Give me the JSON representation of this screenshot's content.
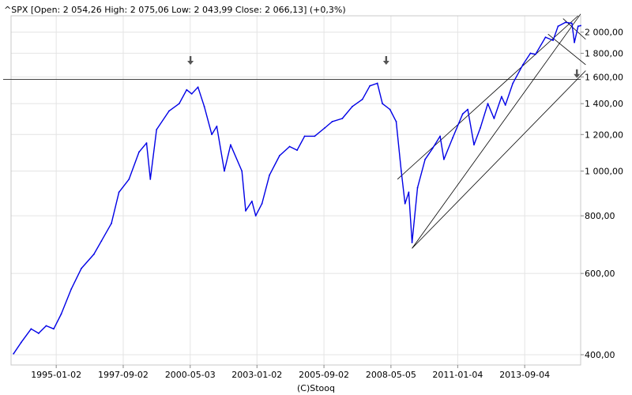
{
  "header": {
    "text": "^SPX [Open: 2 054,26  High: 2 075,06  Low: 2 043,99  Close: 2 066,13]  (+0,3%)"
  },
  "credit": "(C)Stooq",
  "colors": {
    "series": "#0000e6",
    "frame": "#c8c8c8",
    "grid": "#e4e4e4",
    "trendline": "#000000",
    "marker": "#555555"
  },
  "chart_data": {
    "type": "line",
    "title": "^SPX",
    "y_scale": "log",
    "ylim": [
      380,
      2170
    ],
    "xlim": [
      1993.2,
      2015.9
    ],
    "y_ticks": [
      {
        "value": 2000,
        "label": "2 000,00"
      },
      {
        "value": 1800,
        "label": "1 800,00"
      },
      {
        "value": 1600,
        "label": "1 600,00"
      },
      {
        "value": 1400,
        "label": "1 400,00"
      },
      {
        "value": 1200,
        "label": "1 200,00"
      },
      {
        "value": 1000,
        "label": "1 000,00"
      },
      {
        "value": 800,
        "label": "800,00"
      },
      {
        "value": 600,
        "label": "600,00"
      },
      {
        "value": 400,
        "label": "400,00"
      }
    ],
    "x_ticks": [
      {
        "value": 1995.0,
        "label": "1995-01-02"
      },
      {
        "value": 1997.67,
        "label": "1997-09-02"
      },
      {
        "value": 2000.34,
        "label": "2000-05-03"
      },
      {
        "value": 2003.0,
        "label": "2003-01-02"
      },
      {
        "value": 2005.67,
        "label": "2005-09-02"
      },
      {
        "value": 2008.34,
        "label": "2008-05-05"
      },
      {
        "value": 2011.0,
        "label": "2011-01-04"
      },
      {
        "value": 2013.67,
        "label": "2013-09-04"
      }
    ],
    "series": [
      {
        "values": [
          [
            1993.3,
            402
          ],
          [
            1993.6,
            425
          ],
          [
            1994.0,
            455
          ],
          [
            1994.3,
            445
          ],
          [
            1994.6,
            462
          ],
          [
            1994.9,
            455
          ],
          [
            1995.2,
            490
          ],
          [
            1995.6,
            555
          ],
          [
            1996.0,
            615
          ],
          [
            1996.5,
            660
          ],
          [
            1996.8,
            705
          ],
          [
            1997.2,
            770
          ],
          [
            1997.5,
            900
          ],
          [
            1997.9,
            960
          ],
          [
            1998.3,
            1100
          ],
          [
            1998.6,
            1150
          ],
          [
            1998.75,
            960
          ],
          [
            1999.0,
            1230
          ],
          [
            1999.5,
            1350
          ],
          [
            1999.9,
            1400
          ],
          [
            2000.2,
            1500
          ],
          [
            2000.4,
            1470
          ],
          [
            2000.65,
            1520
          ],
          [
            2000.9,
            1380
          ],
          [
            2001.2,
            1200
          ],
          [
            2001.4,
            1250
          ],
          [
            2001.7,
            1000
          ],
          [
            2001.95,
            1140
          ],
          [
            2002.4,
            1000
          ],
          [
            2002.55,
            820
          ],
          [
            2002.8,
            860
          ],
          [
            2002.95,
            800
          ],
          [
            2003.2,
            850
          ],
          [
            2003.5,
            980
          ],
          [
            2003.9,
            1080
          ],
          [
            2004.3,
            1130
          ],
          [
            2004.6,
            1110
          ],
          [
            2004.9,
            1190
          ],
          [
            2005.3,
            1190
          ],
          [
            2005.7,
            1240
          ],
          [
            2006.0,
            1280
          ],
          [
            2006.4,
            1300
          ],
          [
            2006.8,
            1380
          ],
          [
            2007.2,
            1430
          ],
          [
            2007.5,
            1530
          ],
          [
            2007.8,
            1550
          ],
          [
            2008.0,
            1400
          ],
          [
            2008.3,
            1360
          ],
          [
            2008.55,
            1280
          ],
          [
            2008.75,
            1000
          ],
          [
            2008.9,
            850
          ],
          [
            2009.05,
            900
          ],
          [
            2009.18,
            700
          ],
          [
            2009.4,
            920
          ],
          [
            2009.7,
            1060
          ],
          [
            2010.0,
            1120
          ],
          [
            2010.3,
            1190
          ],
          [
            2010.45,
            1060
          ],
          [
            2010.8,
            1180
          ],
          [
            2011.2,
            1330
          ],
          [
            2011.4,
            1360
          ],
          [
            2011.65,
            1140
          ],
          [
            2011.9,
            1240
          ],
          [
            2012.2,
            1400
          ],
          [
            2012.45,
            1300
          ],
          [
            2012.75,
            1450
          ],
          [
            2012.9,
            1390
          ],
          [
            2013.2,
            1550
          ],
          [
            2013.6,
            1700
          ],
          [
            2013.9,
            1800
          ],
          [
            2014.1,
            1790
          ],
          [
            2014.5,
            1950
          ],
          [
            2014.8,
            1920
          ],
          [
            2015.0,
            2060
          ],
          [
            2015.3,
            2100
          ],
          [
            2015.55,
            2090
          ],
          [
            2015.65,
            1900
          ],
          [
            2015.8,
            2060
          ],
          [
            2015.9,
            2066
          ]
        ]
      }
    ],
    "annotations": {
      "horizontal_line": 1580,
      "down_arrows": [
        {
          "x": 2000.35,
          "y": 1720
        },
        {
          "x": 2008.15,
          "y": 1720
        },
        {
          "x": 2015.75,
          "y": 1610
        }
      ],
      "trend_lines": [
        {
          "from": [
            2009.18,
            680
          ],
          "to": [
            2016.1,
            1650
          ]
        },
        {
          "from": [
            2009.18,
            680
          ],
          "to": [
            2015.9,
            2190
          ]
        },
        {
          "from": [
            2008.6,
            960
          ],
          "to": [
            2015.8,
            2170
          ]
        },
        {
          "from": [
            2015.2,
            2140
          ],
          "to": [
            2016.1,
            1930
          ]
        },
        {
          "from": [
            2014.6,
            1980
          ],
          "to": [
            2016.1,
            1700
          ]
        }
      ]
    }
  }
}
